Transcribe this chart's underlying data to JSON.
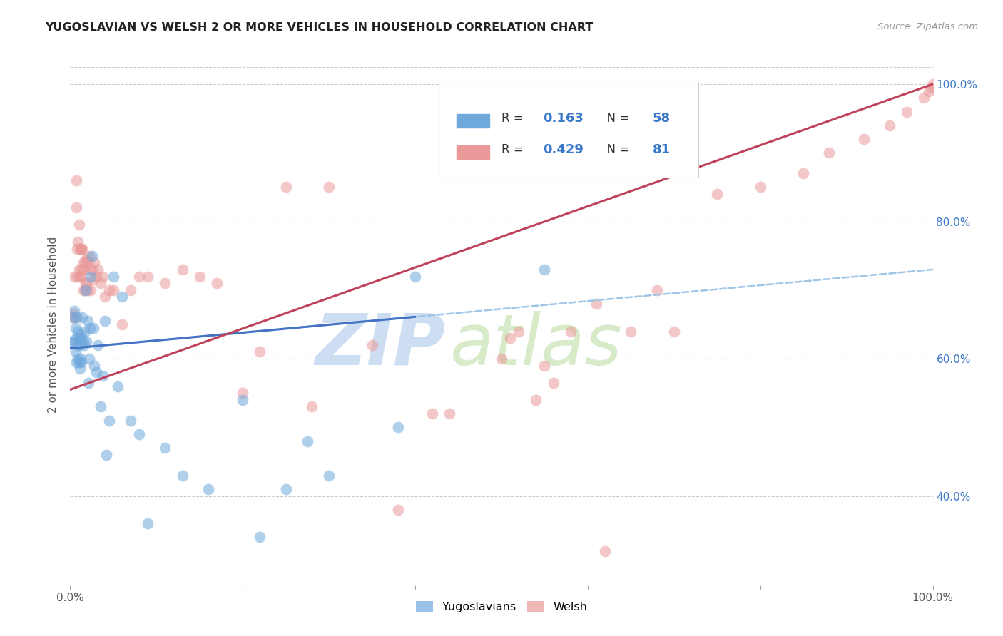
{
  "title": "YUGOSLAVIAN VS WELSH 2 OR MORE VEHICLES IN HOUSEHOLD CORRELATION CHART",
  "source_text": "Source: ZipAtlas.com",
  "ylabel": "2 or more Vehicles in Household",
  "xlim": [
    0,
    1
  ],
  "ylim": [
    0.27,
    1.03
  ],
  "blue_color": "#6fa8dc",
  "pink_color": "#ea9999",
  "blue_line_color": "#4472c4",
  "pink_line_color": "#c0415a",
  "dash_color": "#9fc5e8",
  "legend_r_blue": "0.163",
  "legend_n_blue": "58",
  "legend_r_pink": "0.429",
  "legend_n_pink": "81",
  "label_yugoslavians": "Yugoslavians",
  "label_welsh": "Welsh",
  "watermark_zip": "ZIP",
  "watermark_atlas": "atlas",
  "blue_x": [
    0.003,
    0.004,
    0.005,
    0.005,
    0.006,
    0.006,
    0.007,
    0.007,
    0.008,
    0.008,
    0.009,
    0.009,
    0.01,
    0.01,
    0.011,
    0.011,
    0.012,
    0.012,
    0.013,
    0.013,
    0.014,
    0.015,
    0.016,
    0.017,
    0.018,
    0.019,
    0.02,
    0.021,
    0.022,
    0.023,
    0.024,
    0.025,
    0.027,
    0.028,
    0.03,
    0.032,
    0.035,
    0.038,
    0.04,
    0.042,
    0.045,
    0.05,
    0.055,
    0.06,
    0.07,
    0.08,
    0.09,
    0.11,
    0.13,
    0.16,
    0.2,
    0.22,
    0.25,
    0.275,
    0.3,
    0.38,
    0.4,
    0.55
  ],
  "blue_y": [
    0.625,
    0.66,
    0.625,
    0.67,
    0.61,
    0.645,
    0.595,
    0.63,
    0.62,
    0.66,
    0.6,
    0.64,
    0.595,
    0.63,
    0.585,
    0.62,
    0.6,
    0.635,
    0.595,
    0.63,
    0.66,
    0.625,
    0.62,
    0.64,
    0.7,
    0.625,
    0.655,
    0.565,
    0.6,
    0.645,
    0.72,
    0.75,
    0.645,
    0.59,
    0.58,
    0.62,
    0.53,
    0.575,
    0.655,
    0.46,
    0.51,
    0.72,
    0.56,
    0.69,
    0.51,
    0.49,
    0.36,
    0.47,
    0.43,
    0.41,
    0.54,
    0.34,
    0.41,
    0.48,
    0.43,
    0.5,
    0.72,
    0.73
  ],
  "pink_x": [
    0.003,
    0.004,
    0.005,
    0.006,
    0.007,
    0.007,
    0.008,
    0.008,
    0.009,
    0.01,
    0.01,
    0.011,
    0.011,
    0.012,
    0.012,
    0.013,
    0.013,
    0.014,
    0.015,
    0.015,
    0.016,
    0.017,
    0.017,
    0.018,
    0.019,
    0.019,
    0.02,
    0.021,
    0.022,
    0.023,
    0.024,
    0.025,
    0.027,
    0.028,
    0.03,
    0.032,
    0.035,
    0.038,
    0.04,
    0.045,
    0.05,
    0.06,
    0.07,
    0.08,
    0.09,
    0.11,
    0.13,
    0.15,
    0.17,
    0.2,
    0.22,
    0.25,
    0.28,
    0.3,
    0.35,
    0.38,
    0.42,
    0.44,
    0.5,
    0.51,
    0.52,
    0.55,
    0.58,
    0.61,
    0.65,
    0.68,
    0.7,
    0.75,
    0.8,
    0.85,
    0.88,
    0.92,
    0.95,
    0.97,
    0.99,
    0.995,
    0.998,
    1.0,
    0.54,
    0.56,
    0.62
  ],
  "pink_y": [
    0.66,
    0.665,
    0.72,
    0.66,
    0.82,
    0.86,
    0.72,
    0.76,
    0.77,
    0.73,
    0.795,
    0.72,
    0.76,
    0.72,
    0.76,
    0.73,
    0.76,
    0.76,
    0.7,
    0.74,
    0.73,
    0.7,
    0.74,
    0.71,
    0.71,
    0.745,
    0.7,
    0.74,
    0.75,
    0.73,
    0.7,
    0.73,
    0.715,
    0.74,
    0.72,
    0.73,
    0.71,
    0.72,
    0.69,
    0.7,
    0.7,
    0.65,
    0.7,
    0.72,
    0.72,
    0.71,
    0.73,
    0.72,
    0.71,
    0.55,
    0.61,
    0.85,
    0.53,
    0.85,
    0.62,
    0.38,
    0.52,
    0.52,
    0.6,
    0.63,
    0.64,
    0.59,
    0.64,
    0.68,
    0.64,
    0.7,
    0.64,
    0.84,
    0.85,
    0.87,
    0.9,
    0.92,
    0.94,
    0.96,
    0.98,
    0.99,
    0.995,
    1.0,
    0.54,
    0.565,
    0.32
  ],
  "blue_line_x0": 0.0,
  "blue_line_y0": 0.615,
  "blue_line_x1": 1.0,
  "blue_line_y1": 0.73,
  "pink_line_x0": 0.0,
  "pink_line_y0": 0.555,
  "pink_line_x1": 1.0,
  "pink_line_y1": 1.0,
  "dash_line_x0": 0.0,
  "dash_line_y0": 0.615,
  "dash_line_x1": 1.0,
  "dash_line_y1": 0.87
}
